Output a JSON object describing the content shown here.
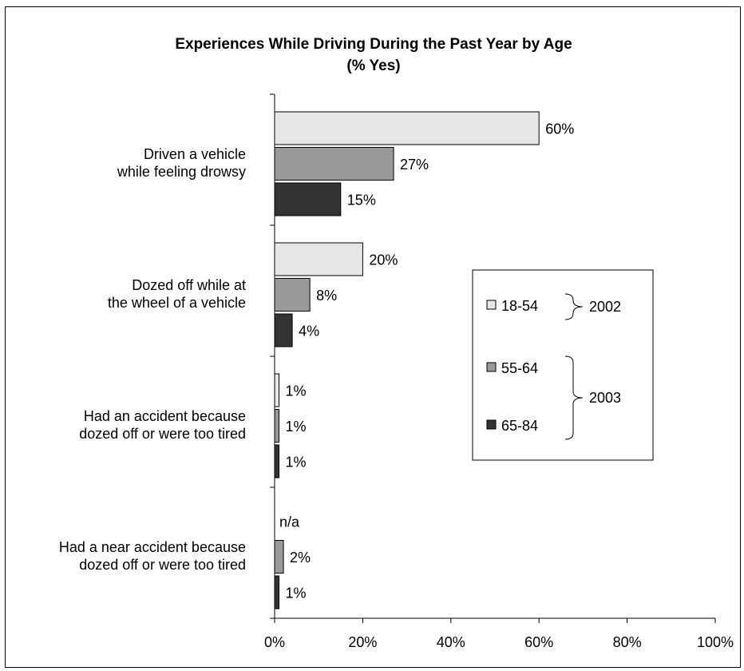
{
  "chart_data": {
    "type": "bar",
    "orientation": "horizontal",
    "title": "Experiences While Driving During the Past Year by Age",
    "subtitle": "(% Yes)",
    "categories": [
      [
        "Driven a vehicle",
        "while feeling drowsy"
      ],
      [
        "Dozed off while at",
        "the wheel of a vehicle"
      ],
      [
        "Had an accident because",
        "dozed off or were too tired"
      ],
      [
        "Had a near accident because",
        "dozed off or were too tired"
      ]
    ],
    "series": [
      {
        "name": "18-54",
        "color": "#e6e6e6",
        "values": [
          60,
          20,
          1,
          null
        ],
        "labels": [
          "60%",
          "20%",
          "1%",
          "n/a"
        ]
      },
      {
        "name": "55-64",
        "color": "#999999",
        "values": [
          27,
          8,
          1,
          2
        ],
        "labels": [
          "27%",
          "8%",
          "1%",
          "2%"
        ]
      },
      {
        "name": "65-84",
        "color": "#333333",
        "values": [
          15,
          4,
          1,
          1
        ],
        "labels": [
          "15%",
          "4%",
          "1%",
          "1%"
        ]
      }
    ],
    "xlim": [
      0,
      100
    ],
    "xticks": [
      0,
      20,
      40,
      60,
      80,
      100
    ],
    "xtick_labels": [
      "0%",
      "20%",
      "40%",
      "60%",
      "80%",
      "100%"
    ],
    "legend": {
      "position": "right",
      "groups": [
        {
          "label": "2002",
          "series": [
            "18-54"
          ]
        },
        {
          "label": "2003",
          "series": [
            "55-64",
            "65-84"
          ]
        }
      ]
    }
  }
}
